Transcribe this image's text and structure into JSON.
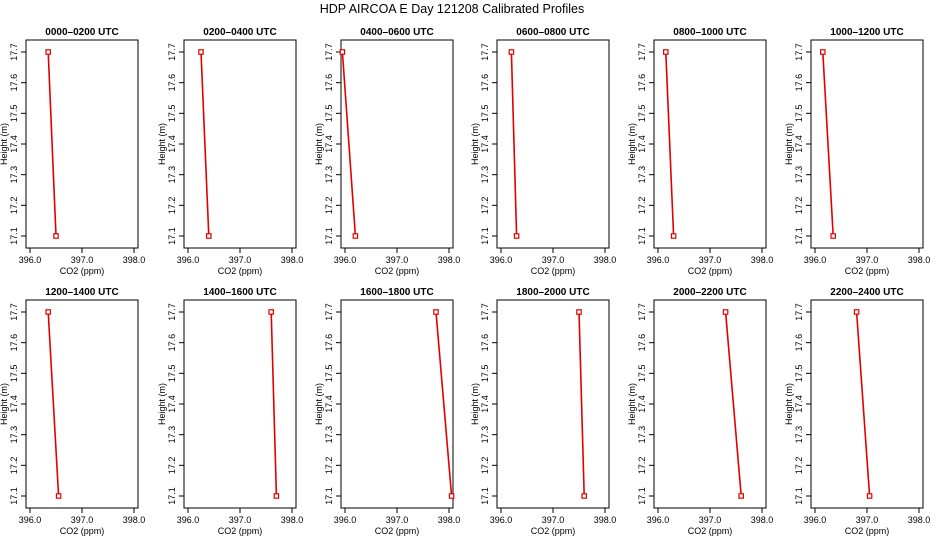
{
  "figure": {
    "title": "HDP AIRCOA E  Day 121208  Calibrated Profiles"
  },
  "style": {
    "line_color": "#e00000",
    "marker_color": "#e00000",
    "axis_color": "#000000"
  },
  "chart_data": [
    {
      "type": "line",
      "title": "0000–0200 UTC",
      "xlabel": "CO2 (ppm)",
      "ylabel": "Height (m)",
      "xlim": [
        396.0,
        398.0
      ],
      "ylim": [
        17.1,
        17.7
      ],
      "xticks": [
        "396.0",
        "397.0",
        "398.0"
      ],
      "yticks": [
        "17.1",
        "17.2",
        "17.3",
        "17.4",
        "17.5",
        "17.6",
        "17.7"
      ],
      "series": [
        {
          "x": [
            396.35,
            396.5
          ],
          "y": [
            17.7,
            17.1
          ]
        }
      ]
    },
    {
      "type": "line",
      "title": "0200–0400 UTC",
      "xlabel": "CO2 (ppm)",
      "ylabel": "Height (m)",
      "xlim": [
        396.0,
        398.0
      ],
      "ylim": [
        17.1,
        17.7
      ],
      "xticks": [
        "396.0",
        "397.0",
        "398.0"
      ],
      "yticks": [
        "17.1",
        "17.2",
        "17.3",
        "17.4",
        "17.5",
        "17.6",
        "17.7"
      ],
      "series": [
        {
          "x": [
            396.25,
            396.4
          ],
          "y": [
            17.7,
            17.1
          ]
        }
      ]
    },
    {
      "type": "line",
      "title": "0400–0600 UTC",
      "xlabel": "CO2 (ppm)",
      "ylabel": "Height (m)",
      "xlim": [
        396.0,
        398.0
      ],
      "ylim": [
        17.1,
        17.7
      ],
      "xticks": [
        "396.0",
        "397.0",
        "398.0"
      ],
      "yticks": [
        "17.1",
        "17.2",
        "17.3",
        "17.4",
        "17.5",
        "17.6",
        "17.7"
      ],
      "series": [
        {
          "x": [
            395.95,
            396.2
          ],
          "y": [
            17.7,
            17.1
          ]
        }
      ]
    },
    {
      "type": "line",
      "title": "0600–0800 UTC",
      "xlabel": "CO2 (ppm)",
      "ylabel": "Height (m)",
      "xlim": [
        396.0,
        398.0
      ],
      "ylim": [
        17.1,
        17.7
      ],
      "xticks": [
        "396.0",
        "397.0",
        "398.0"
      ],
      "yticks": [
        "17.1",
        "17.2",
        "17.3",
        "17.4",
        "17.5",
        "17.6",
        "17.7"
      ],
      "series": [
        {
          "x": [
            396.2,
            396.3
          ],
          "y": [
            17.7,
            17.1
          ]
        }
      ]
    },
    {
      "type": "line",
      "title": "0800–1000 UTC",
      "xlabel": "CO2 (ppm)",
      "ylabel": "Height (m)",
      "xlim": [
        396.0,
        398.0
      ],
      "ylim": [
        17.1,
        17.7
      ],
      "xticks": [
        "396.0",
        "397.0",
        "398.0"
      ],
      "yticks": [
        "17.1",
        "17.2",
        "17.3",
        "17.4",
        "17.5",
        "17.6",
        "17.7"
      ],
      "series": [
        {
          "x": [
            396.15,
            396.3
          ],
          "y": [
            17.7,
            17.1
          ]
        }
      ]
    },
    {
      "type": "line",
      "title": "1000–1200 UTC",
      "xlabel": "CO2 (ppm)",
      "ylabel": "Height (m)",
      "xlim": [
        396.0,
        398.0
      ],
      "ylim": [
        17.1,
        17.7
      ],
      "xticks": [
        "396.0",
        "397.0",
        "398.0"
      ],
      "yticks": [
        "17.1",
        "17.2",
        "17.3",
        "17.4",
        "17.5",
        "17.6",
        "17.7"
      ],
      "series": [
        {
          "x": [
            396.15,
            396.35
          ],
          "y": [
            17.7,
            17.1
          ]
        }
      ]
    },
    {
      "type": "line",
      "title": "1200–1400 UTC",
      "xlabel": "CO2 (ppm)",
      "ylabel": "Height (m)",
      "xlim": [
        396.0,
        398.0
      ],
      "ylim": [
        17.1,
        17.7
      ],
      "xticks": [
        "396.0",
        "397.0",
        "398.0"
      ],
      "yticks": [
        "17.1",
        "17.2",
        "17.3",
        "17.4",
        "17.5",
        "17.6",
        "17.7"
      ],
      "series": [
        {
          "x": [
            396.35,
            396.55
          ],
          "y": [
            17.7,
            17.1
          ]
        }
      ]
    },
    {
      "type": "line",
      "title": "1400–1600 UTC",
      "xlabel": "CO2 (ppm)",
      "ylabel": "Height (m)",
      "xlim": [
        396.0,
        398.0
      ],
      "ylim": [
        17.1,
        17.7
      ],
      "xticks": [
        "396.0",
        "397.0",
        "398.0"
      ],
      "yticks": [
        "17.1",
        "17.2",
        "17.3",
        "17.4",
        "17.5",
        "17.6",
        "17.7"
      ],
      "series": [
        {
          "x": [
            397.6,
            397.7
          ],
          "y": [
            17.7,
            17.1
          ]
        }
      ]
    },
    {
      "type": "line",
      "title": "1600–1800 UTC",
      "xlabel": "CO2 (ppm)",
      "ylabel": "Height (m)",
      "xlim": [
        396.0,
        398.0
      ],
      "ylim": [
        17.1,
        17.7
      ],
      "xticks": [
        "396.0",
        "397.0",
        "398.0"
      ],
      "yticks": [
        "17.1",
        "17.2",
        "17.3",
        "17.4",
        "17.5",
        "17.6",
        "17.7"
      ],
      "series": [
        {
          "x": [
            397.75,
            398.05
          ],
          "y": [
            17.7,
            17.1
          ]
        }
      ]
    },
    {
      "type": "line",
      "title": "1800–2000 UTC",
      "xlabel": "CO2 (ppm)",
      "ylabel": "Height (m)",
      "xlim": [
        396.0,
        398.0
      ],
      "ylim": [
        17.1,
        17.7
      ],
      "xticks": [
        "396.0",
        "397.0",
        "398.0"
      ],
      "yticks": [
        "17.1",
        "17.2",
        "17.3",
        "17.4",
        "17.5",
        "17.6",
        "17.7"
      ],
      "series": [
        {
          "x": [
            397.5,
            397.6
          ],
          "y": [
            17.7,
            17.1
          ]
        }
      ]
    },
    {
      "type": "line",
      "title": "2000–2200 UTC",
      "xlabel": "CO2 (ppm)",
      "ylabel": "Height (m)",
      "xlim": [
        396.0,
        398.0
      ],
      "ylim": [
        17.1,
        17.7
      ],
      "xticks": [
        "396.0",
        "397.0",
        "398.0"
      ],
      "yticks": [
        "17.1",
        "17.2",
        "17.3",
        "17.4",
        "17.5",
        "17.6",
        "17.7"
      ],
      "series": [
        {
          "x": [
            397.3,
            397.6
          ],
          "y": [
            17.7,
            17.1
          ]
        }
      ]
    },
    {
      "type": "line",
      "title": "2200–2400 UTC",
      "xlabel": "CO2 (ppm)",
      "ylabel": "Height (m)",
      "xlim": [
        396.0,
        398.0
      ],
      "ylim": [
        17.1,
        17.7
      ],
      "xticks": [
        "396.0",
        "397.0",
        "398.0"
      ],
      "yticks": [
        "17.1",
        "17.2",
        "17.3",
        "17.4",
        "17.5",
        "17.6",
        "17.7"
      ],
      "series": [
        {
          "x": [
            396.8,
            397.05
          ],
          "y": [
            17.7,
            17.1
          ]
        }
      ]
    }
  ]
}
